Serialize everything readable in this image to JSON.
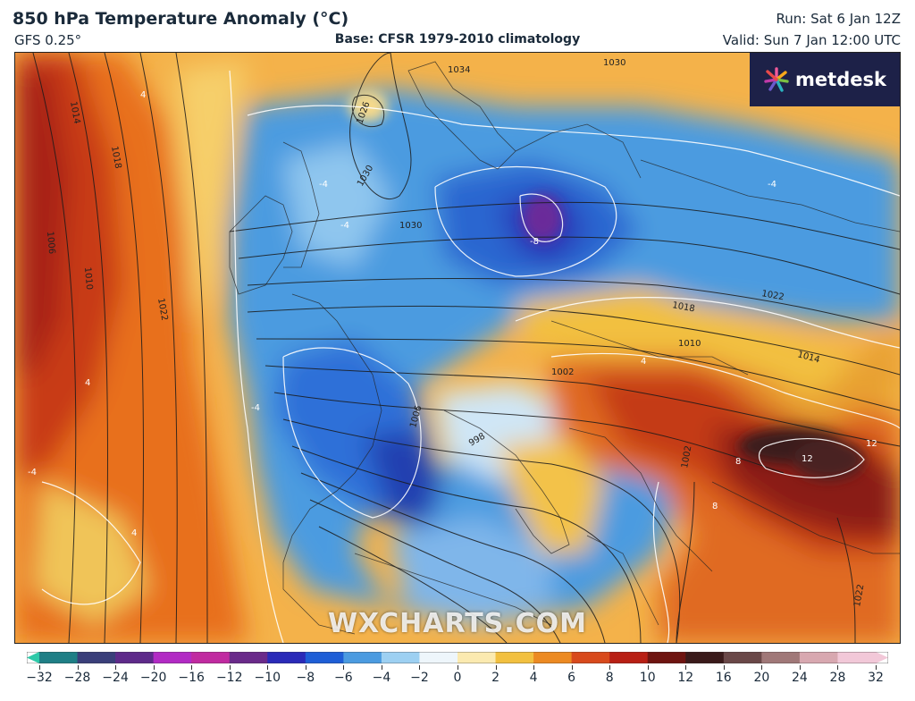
{
  "header": {
    "title": "850 hPa Temperature Anomaly (°C)",
    "model": "GFS 0.25°",
    "base": "Base: CFSR 1979-2010 climatology",
    "run": "Run: Sat 6 Jan 12Z",
    "valid": "Valid: Sun 7 Jan 12:00 UTC"
  },
  "brand": {
    "name": "metdesk",
    "logo_icon": "metdesk-burst-icon"
  },
  "watermark": "WXCHARTS.COM",
  "map": {
    "isobar_labels": [
      "1034",
      "1030",
      "1026",
      "1030",
      "1030",
      "1022",
      "1018",
      "1014",
      "1010",
      "1006",
      "1002",
      "1022",
      "1018",
      "1014",
      "1010",
      "1006",
      "1002",
      "998",
      "1022"
    ],
    "anomaly_labels": [
      "-4",
      "4",
      "-8",
      "-4",
      "-4",
      "8",
      "12",
      "12",
      "8",
      "4",
      "-4",
      "4",
      "-4",
      "4"
    ]
  },
  "colorbar": {
    "ticks": [
      "−32",
      "−28",
      "−24",
      "−20",
      "−16",
      "−12",
      "−10",
      "−8",
      "−6",
      "−4",
      "−2",
      "0",
      "2",
      "4",
      "6",
      "8",
      "10",
      "12",
      "16",
      "20",
      "24",
      "28",
      "32"
    ],
    "colors": [
      "#2ec9a8",
      "#1f7f86",
      "#3a3f7a",
      "#5e2a8a",
      "#b22ac4",
      "#c02aa0",
      "#6a2a8a",
      "#2a2ab8",
      "#1e5ed6",
      "#4b9be0",
      "#9dd0f2",
      "#eef6fb",
      "#fbeab0",
      "#f2c040",
      "#ec8a22",
      "#d84a1c",
      "#b81f14",
      "#6e1410",
      "#3a1a1a",
      "#6a4848",
      "#a07878",
      "#d8a8b0",
      "#f2c8d8"
    ]
  }
}
